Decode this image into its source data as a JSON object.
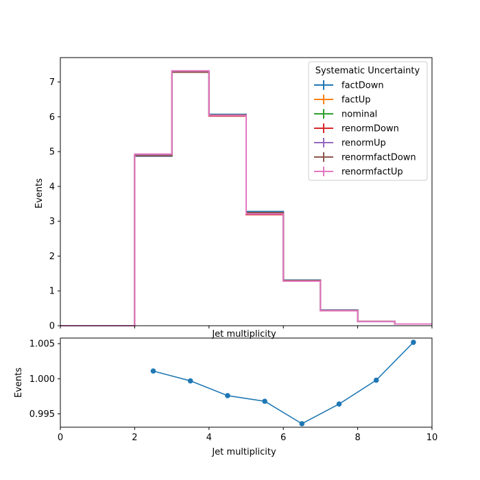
{
  "chart_data": [
    {
      "type": "step",
      "xlabel": "Jet multiplicity",
      "ylabel": "Events",
      "xlim": [
        0,
        10
      ],
      "ylim": [
        0,
        7.7
      ],
      "xticks": [
        "0",
        "2",
        "4",
        "6",
        "8",
        "10"
      ],
      "yticks": [
        "0",
        "1",
        "2",
        "3",
        "4",
        "5",
        "6",
        "7"
      ],
      "bin_edges": [
        0,
        1,
        2,
        3,
        4,
        5,
        6,
        7,
        8,
        9,
        10
      ],
      "legend": {
        "title": "Systematic Uncertainty",
        "placement": "top-right"
      },
      "series": [
        {
          "name": "factDown",
          "color": "#1f77b4",
          "values": [
            0,
            0,
            4.87,
            7.29,
            6.07,
            3.28,
            1.31,
            0.45,
            0.12,
            0.05
          ]
        },
        {
          "name": "factUp",
          "color": "#ff7f0e",
          "values": [
            0,
            0,
            4.9,
            7.29,
            6.04,
            3.22,
            1.29,
            0.44,
            0.12,
            0.05
          ]
        },
        {
          "name": "nominal",
          "color": "#2ca02c",
          "values": [
            0,
            0,
            4.89,
            7.29,
            6.05,
            3.24,
            1.3,
            0.44,
            0.12,
            0.05
          ]
        },
        {
          "name": "renormDown",
          "color": "#d62728",
          "values": [
            0,
            0,
            4.9,
            7.29,
            6.02,
            3.19,
            1.28,
            0.43,
            0.12,
            0.05
          ]
        },
        {
          "name": "renormUp",
          "color": "#9467bd",
          "values": [
            0,
            0,
            4.9,
            7.3,
            6.04,
            3.22,
            1.29,
            0.44,
            0.12,
            0.05
          ]
        },
        {
          "name": "renormfactDown",
          "color": "#8c564b",
          "values": [
            0,
            0,
            4.88,
            7.28,
            6.05,
            3.25,
            1.3,
            0.44,
            0.12,
            0.05
          ]
        },
        {
          "name": "renormfactUp",
          "color": "#e377c2",
          "values": [
            0,
            0,
            4.93,
            7.32,
            6.04,
            3.21,
            1.28,
            0.43,
            0.12,
            0.05
          ]
        }
      ]
    },
    {
      "type": "line",
      "xlabel": "Jet multiplicity",
      "ylabel": "Events",
      "xlim": [
        0,
        10
      ],
      "ylim": [
        0.9931,
        1.0058
      ],
      "xticks": [
        "0",
        "2",
        "4",
        "6",
        "8",
        "10"
      ],
      "yticks": [
        "0.995",
        "1.000",
        "1.005"
      ],
      "series": [
        {
          "color": "#1f77b4",
          "x": [
            2.5,
            3.5,
            4.5,
            5.5,
            6.5,
            7.5,
            8.5,
            9.5
          ],
          "y": [
            1.0011,
            0.9997,
            0.9976,
            0.9968,
            0.9936,
            0.9964,
            0.9998,
            1.0052
          ]
        }
      ]
    }
  ]
}
